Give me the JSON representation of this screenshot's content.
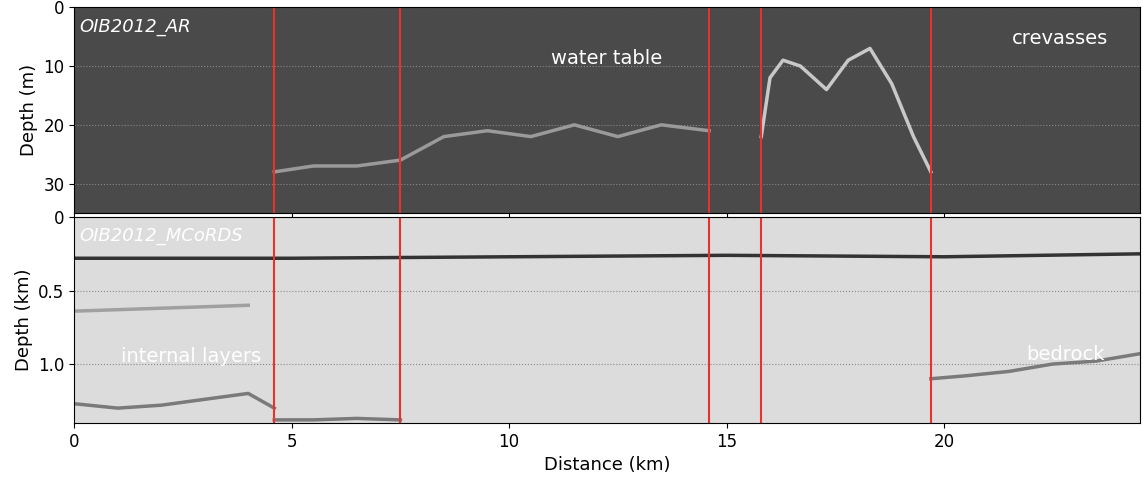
{
  "chart_data": [
    {
      "type": "radargram",
      "title": "OIB2012_AR",
      "ylabel": "Depth (m)",
      "annotations": [
        "water table",
        "crevasses"
      ],
      "xlim": [
        0,
        24.5
      ],
      "ylim": [
        35,
        0
      ],
      "xticks": [
        0,
        5,
        10,
        15,
        20
      ],
      "yticks": [
        0,
        10,
        20,
        30
      ],
      "tick_labels": "y",
      "grid": true,
      "vertical_lines": {
        "x": [
          4.6,
          7.5,
          14.6,
          15.8,
          19.7
        ],
        "color": "#e8322c"
      },
      "series": [
        {
          "color": "#9a9a9a",
          "x": [
            4.6,
            5.5,
            6.5,
            7.5,
            8.5,
            9.5,
            10.5,
            11.5,
            12.5,
            13.5,
            14.6
          ],
          "values": [
            28,
            27,
            27,
            26,
            22,
            21,
            22,
            20,
            22,
            20,
            21
          ]
        },
        {
          "color": "#c8c8c8",
          "x": [
            15.8,
            16.0,
            16.3,
            16.7,
            17.3,
            17.8,
            18.3,
            18.8,
            19.3,
            19.7
          ],
          "values": [
            22,
            12,
            9,
            10,
            14,
            9,
            7,
            13,
            22,
            28
          ]
        }
      ]
    },
    {
      "type": "radargram",
      "title": "OIB2012_MCoRDS",
      "ylabel": "Depth (km)",
      "xlabel": "Distance (km)",
      "annotations": [
        "internal layers",
        "bedrock"
      ],
      "xlim": [
        0,
        24.5
      ],
      "ylim": [
        1.4,
        0
      ],
      "xticks": [
        0,
        5,
        10,
        15,
        20
      ],
      "yticks": [
        0,
        0.5,
        1.0
      ],
      "tick_labels": true,
      "grid": true,
      "vertical_lines": {
        "x": [
          4.6,
          7.5,
          14.6,
          15.8,
          19.7
        ],
        "color": "#e8322c"
      },
      "series": [
        {
          "color": "#333333",
          "x": [
            0,
            5,
            10,
            15,
            20,
            24.5
          ],
          "values": [
            0.28,
            0.28,
            0.27,
            0.26,
            0.27,
            0.25
          ]
        },
        {
          "color": "#a0a0a0",
          "x": [
            0,
            1,
            2,
            3,
            4
          ],
          "values": [
            0.64,
            0.63,
            0.62,
            0.61,
            0.6
          ]
        },
        {
          "color": "#7a7a7a",
          "x": [
            0,
            1,
            2,
            3,
            4,
            4.6
          ],
          "values": [
            1.27,
            1.3,
            1.28,
            1.24,
            1.2,
            1.3
          ]
        },
        {
          "color": "#7a7a7a",
          "x": [
            4.6,
            5.5,
            6.5,
            7.5
          ],
          "values": [
            1.38,
            1.38,
            1.37,
            1.38
          ]
        },
        {
          "color": "#7a7a7a",
          "x": [
            19.7,
            20.5,
            21.5,
            22.5,
            23.5,
            24.5
          ],
          "values": [
            1.1,
            1.08,
            1.05,
            1.0,
            0.98,
            0.93
          ]
        }
      ]
    }
  ]
}
